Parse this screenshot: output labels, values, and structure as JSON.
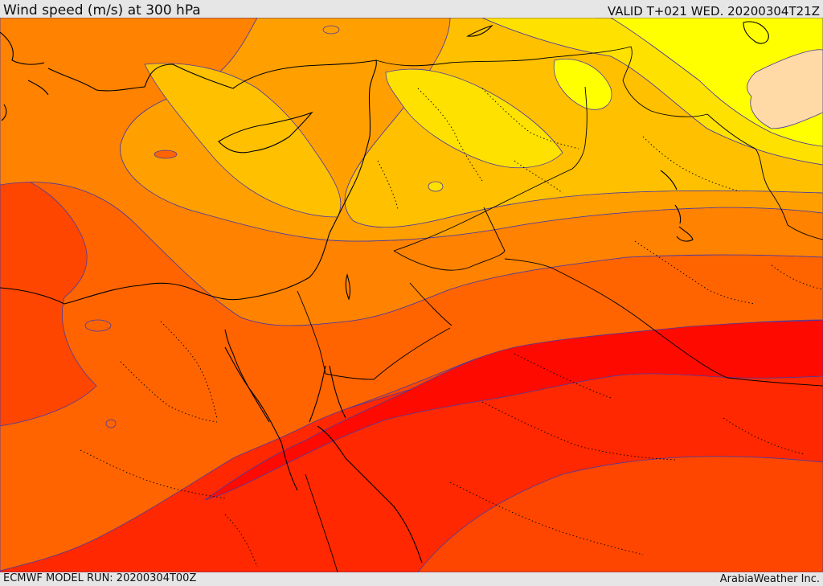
{
  "header": {
    "title": "Wind speed (m/s) at 300 hPa",
    "valid": "VALID T+021 WED. 20200304T21Z"
  },
  "footer": {
    "model_run": "ECMWF MODEL RUN: 20200304T00Z",
    "credit": "ArabiaWeather Inc."
  },
  "map": {
    "field": "wind speed at 300 hPa",
    "shading_colors": [
      "#ffd9a6",
      "#ffff00",
      "#ffe100",
      "#ffc000",
      "#ffa000",
      "#ff8200",
      "#ff6400",
      "#ff4600",
      "#ff2800",
      "#ff0a00"
    ],
    "contour_color": "#4b3aa0",
    "border_color": "#000000"
  }
}
